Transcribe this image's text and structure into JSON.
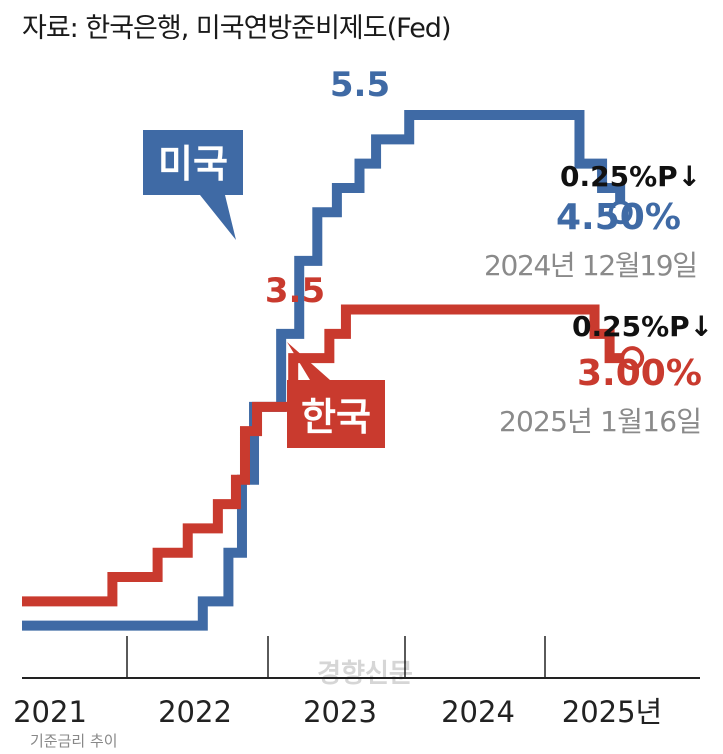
{
  "source": "자료: 한국은행, 미국연방준비제도(Fed)",
  "caption": "기준금리 추이",
  "watermark": "경향신문",
  "colors": {
    "us": "#3f6aa5",
    "kr": "#c93a2e",
    "axis": "#222222",
    "gray": "#8a8a8a"
  },
  "chart_data": {
    "type": "line",
    "step": true,
    "title": "",
    "xlabel": "",
    "ylabel": "",
    "x_ticks": [
      "2021",
      "2022",
      "2023",
      "2024",
      "2025년"
    ],
    "xlim": [
      2021.0,
      2025.5
    ],
    "ylim": [
      0,
      6
    ],
    "series": [
      {
        "name": "미국",
        "color": "#3f6aa5",
        "points": [
          [
            2021.0,
            0.25
          ],
          [
            2022.2,
            0.5
          ],
          [
            2022.37,
            1.0
          ],
          [
            2022.46,
            1.75
          ],
          [
            2022.54,
            2.5
          ],
          [
            2022.72,
            3.25
          ],
          [
            2022.84,
            4.0
          ],
          [
            2022.96,
            4.5
          ],
          [
            2023.09,
            4.75
          ],
          [
            2023.24,
            5.0
          ],
          [
            2023.35,
            5.25
          ],
          [
            2023.57,
            5.5
          ],
          [
            2024.7,
            5.0
          ],
          [
            2024.85,
            4.75
          ],
          [
            2024.97,
            4.5
          ],
          [
            2025.0,
            4.5
          ]
        ],
        "peak_label": "5.5",
        "change_label": "0.25%P↓",
        "end_label": "4.50%",
        "end_date": "2024년 12월19일"
      },
      {
        "name": "한국",
        "color": "#c93a2e",
        "points": [
          [
            2021.0,
            0.5
          ],
          [
            2021.6,
            0.75
          ],
          [
            2021.9,
            1.0
          ],
          [
            2022.1,
            1.25
          ],
          [
            2022.3,
            1.5
          ],
          [
            2022.42,
            1.75
          ],
          [
            2022.48,
            2.25
          ],
          [
            2022.56,
            2.5
          ],
          [
            2022.8,
            3.0
          ],
          [
            2023.04,
            3.25
          ],
          [
            2023.15,
            3.5
          ],
          [
            2024.8,
            3.25
          ],
          [
            2024.9,
            3.0
          ],
          [
            2025.05,
            3.0
          ]
        ],
        "peak_label": "3.5",
        "change_label": "0.25%P↓",
        "end_label": "3.00%",
        "end_date": "2025년 1월16일"
      }
    ]
  }
}
